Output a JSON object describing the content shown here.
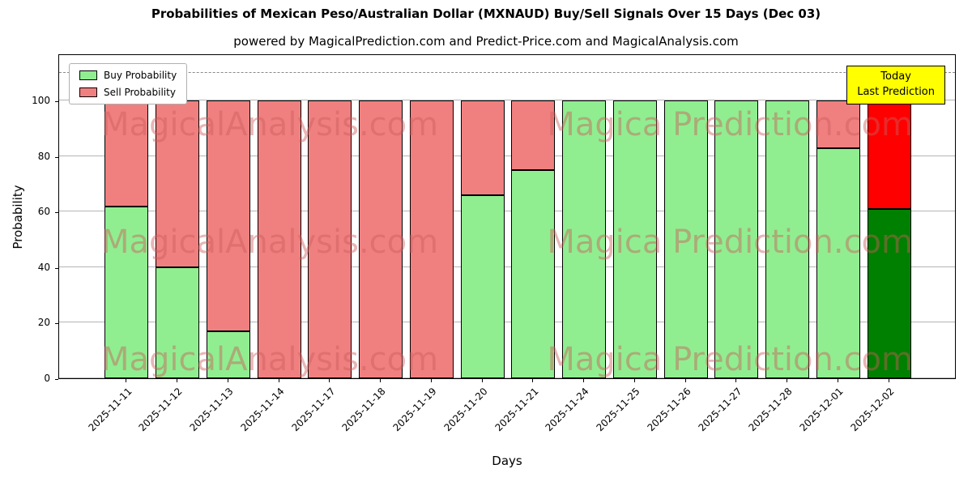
{
  "subtitle": "powered by MagicalPrediction.com and Predict-Price.com and MagicalAnalysis.com",
  "annotation": {
    "line1": "Today",
    "line2": "Last Prediction",
    "bg_color": "#ffff00"
  },
  "watermark": {
    "left_text": "MagicalAnalysis.com",
    "right_text": "Magica Prediction.com",
    "rows": 3,
    "color": "#CD5C5C",
    "opacity": 0.45
  },
  "chart_data": {
    "type": "bar",
    "stacked": true,
    "title": "Probabilities of Mexican Peso/Australian Dollar (MXNAUD) Buy/Sell Signals Over 15 Days (Dec 03)",
    "xlabel": "Days",
    "ylabel": "Probability",
    "ylim": [
      0,
      117
    ],
    "yticks": [
      0,
      20,
      40,
      60,
      80,
      100
    ],
    "dashed_line_y": 110,
    "grid": "horizontal",
    "legend_position": "upper left",
    "bar_edge_color": "#000000",
    "categories": [
      "2025-11-11",
      "2025-11-12",
      "2025-11-13",
      "2025-11-14",
      "2025-11-17",
      "2025-11-18",
      "2025-11-19",
      "2025-11-20",
      "2025-11-21",
      "2025-11-24",
      "2025-11-25",
      "2025-11-26",
      "2025-11-27",
      "2025-11-28",
      "2025-12-01",
      "2025-12-02"
    ],
    "series": [
      {
        "name": "Buy Probability",
        "color": "#90EE90",
        "values": [
          62,
          40,
          17,
          0,
          0,
          0,
          0,
          66,
          75,
          100,
          100,
          100,
          100,
          100,
          83,
          61
        ]
      },
      {
        "name": "Sell Probability",
        "color": "#F08080",
        "values": [
          38,
          60,
          83,
          100,
          100,
          100,
          100,
          34,
          25,
          0,
          0,
          0,
          0,
          0,
          17,
          39
        ]
      }
    ],
    "highlight_last_bar": {
      "buy_color": "#008000",
      "sell_color": "#FF0000"
    }
  }
}
